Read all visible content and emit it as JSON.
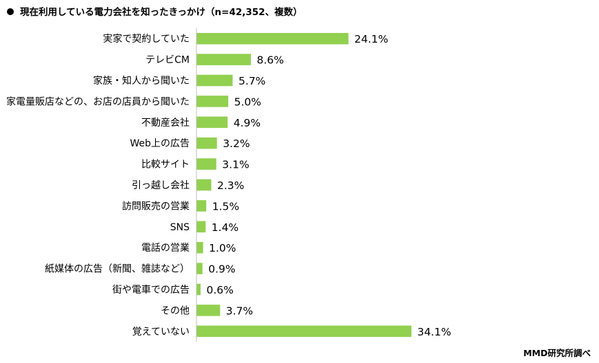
{
  "title": "現在利用している電力会社を知ったきっかけ（n=42,352、複数）",
  "source": "MMD研究所調べ",
  "chart_data": {
    "type": "bar",
    "orientation": "horizontal",
    "title": "現在利用している電力会社を知ったきっかけ（n=42,352、複数）",
    "categories": [
      "実家で契約していた",
      "テレビCM",
      "家族・知人から聞いた",
      "家電量販店などの、お店の店員から聞いた",
      "不動産会社",
      "Web上の広告",
      "比較サイト",
      "引っ越し会社",
      "訪問販売の営業",
      "SNS",
      "電話の営業",
      "紙媒体の広告（新聞、雑誌など）",
      "街や電車での広告",
      "その他",
      "覚えていない"
    ],
    "values": [
      24.1,
      8.6,
      5.7,
      5.0,
      4.9,
      3.2,
      3.1,
      2.3,
      1.5,
      1.4,
      1.0,
      0.9,
      0.6,
      3.7,
      34.1
    ],
    "value_labels": [
      "24.1%",
      "8.6%",
      "5.7%",
      "5.0%",
      "4.9%",
      "3.2%",
      "3.1%",
      "2.3%",
      "1.5%",
      "1.4%",
      "1.0%",
      "0.9%",
      "0.6%",
      "3.7%",
      "34.1%"
    ],
    "bar_color": "#92d050",
    "axis_color": "#bfbfbf",
    "grid": false,
    "legend": false
  }
}
